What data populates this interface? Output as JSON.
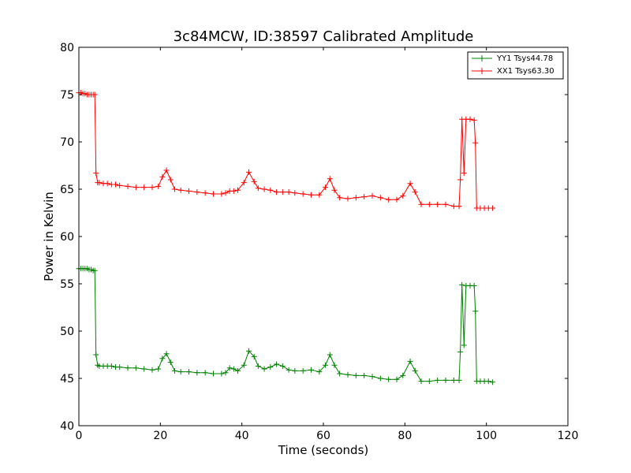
{
  "chart_data": {
    "type": "line",
    "title": "3c84MCW, ID:38597 Calibrated Amplitude",
    "xlabel": "Time (seconds)",
    "ylabel": "Power in Kelvin",
    "xlim": [
      0,
      120
    ],
    "ylim": [
      40,
      80
    ],
    "xticks": [
      "0",
      "20",
      "40",
      "60",
      "80",
      "100",
      "120"
    ],
    "yticks": [
      "40",
      "45",
      "50",
      "55",
      "60",
      "65",
      "70",
      "75",
      "80"
    ],
    "grid": false,
    "legend_position": "top-right",
    "marker": "+",
    "series": [
      {
        "name": "YY1 Tsys44.78",
        "color": "#008000",
        "x": [
          0,
          0.5,
          1,
          1.5,
          2,
          2.5,
          3,
          3.5,
          3.9,
          4.2,
          4.6,
          5,
          6,
          7,
          8,
          9,
          10,
          12,
          14,
          16,
          18,
          19.5,
          20.5,
          21.5,
          22.5,
          23.5,
          25,
          27,
          29,
          31,
          33,
          35,
          36,
          37,
          38,
          39,
          40.5,
          41.7,
          43,
          44,
          45.5,
          47,
          48.5,
          50,
          51.5,
          53,
          55,
          57,
          59,
          60.5,
          61.6,
          62.7,
          64,
          66,
          68,
          70,
          72,
          74,
          76,
          78,
          79.5,
          81.3,
          82.5,
          84,
          86,
          88,
          90,
          92,
          93.3,
          93.6,
          94,
          94.5,
          95,
          96,
          97,
          97.3,
          97.6,
          98.5,
          99.5,
          100.5,
          101.5
        ],
        "y": [
          56.6,
          56.6,
          56.6,
          56.6,
          56.6,
          56.5,
          56.5,
          56.4,
          56.4,
          47.5,
          46.4,
          46.3,
          46.3,
          46.3,
          46.3,
          46.2,
          46.2,
          46.1,
          46.1,
          46.0,
          45.9,
          46.0,
          47.1,
          47.6,
          46.7,
          45.8,
          45.7,
          45.7,
          45.6,
          45.6,
          45.5,
          45.5,
          45.6,
          46.1,
          46.0,
          45.8,
          46.4,
          47.9,
          47.3,
          46.3,
          46.0,
          46.2,
          46.5,
          46.3,
          45.9,
          45.8,
          45.8,
          45.9,
          45.7,
          46.4,
          47.5,
          46.4,
          45.5,
          45.4,
          45.3,
          45.3,
          45.2,
          45.0,
          44.9,
          44.9,
          45.3,
          46.8,
          45.8,
          44.7,
          44.7,
          44.8,
          44.8,
          44.8,
          44.8,
          47.8,
          54.9,
          48.5,
          54.8,
          54.8,
          54.8,
          52.1,
          44.7,
          44.7,
          44.7,
          44.7,
          44.6
        ]
      },
      {
        "name": "XX1 Tsys63.30",
        "color": "#ff0000",
        "x": [
          0,
          0.5,
          1,
          1.5,
          2,
          2.5,
          3,
          3.5,
          3.9,
          4.2,
          4.6,
          5,
          6,
          7,
          8,
          9,
          10,
          12,
          14,
          16,
          18,
          19.5,
          20.5,
          21.5,
          22.5,
          23.5,
          25,
          27,
          29,
          31,
          33,
          35,
          36,
          37,
          38,
          39,
          40.5,
          41.7,
          43,
          44,
          45.5,
          47,
          48.5,
          50,
          51.5,
          53,
          55,
          57,
          59,
          60.5,
          61.6,
          62.7,
          64,
          66,
          68,
          70,
          72,
          74,
          76,
          78,
          79.5,
          81.3,
          82.5,
          84,
          86,
          88,
          90,
          92,
          93.3,
          93.6,
          94,
          94.5,
          95,
          96,
          97,
          97.3,
          97.6,
          98.5,
          99.5,
          100.5,
          101.5
        ],
        "y": [
          75.2,
          75.2,
          75.1,
          75.1,
          75.0,
          75.0,
          75.0,
          75.0,
          75.0,
          66.7,
          65.7,
          65.7,
          65.6,
          65.6,
          65.5,
          65.5,
          65.4,
          65.3,
          65.2,
          65.2,
          65.2,
          65.3,
          66.3,
          67.0,
          66.0,
          65.0,
          64.9,
          64.8,
          64.7,
          64.6,
          64.5,
          64.5,
          64.6,
          64.8,
          64.8,
          64.9,
          65.7,
          66.8,
          65.8,
          65.1,
          65.0,
          64.9,
          64.7,
          64.7,
          64.7,
          64.6,
          64.5,
          64.4,
          64.4,
          65.2,
          66.1,
          64.9,
          64.1,
          64.0,
          64.1,
          64.2,
          64.3,
          64.1,
          63.9,
          63.9,
          64.3,
          65.6,
          64.7,
          63.4,
          63.4,
          63.4,
          63.4,
          63.2,
          63.2,
          66.0,
          72.4,
          66.7,
          72.4,
          72.4,
          72.3,
          69.9,
          63.0,
          63.0,
          63.0,
          63.0,
          63.0
        ]
      }
    ]
  }
}
